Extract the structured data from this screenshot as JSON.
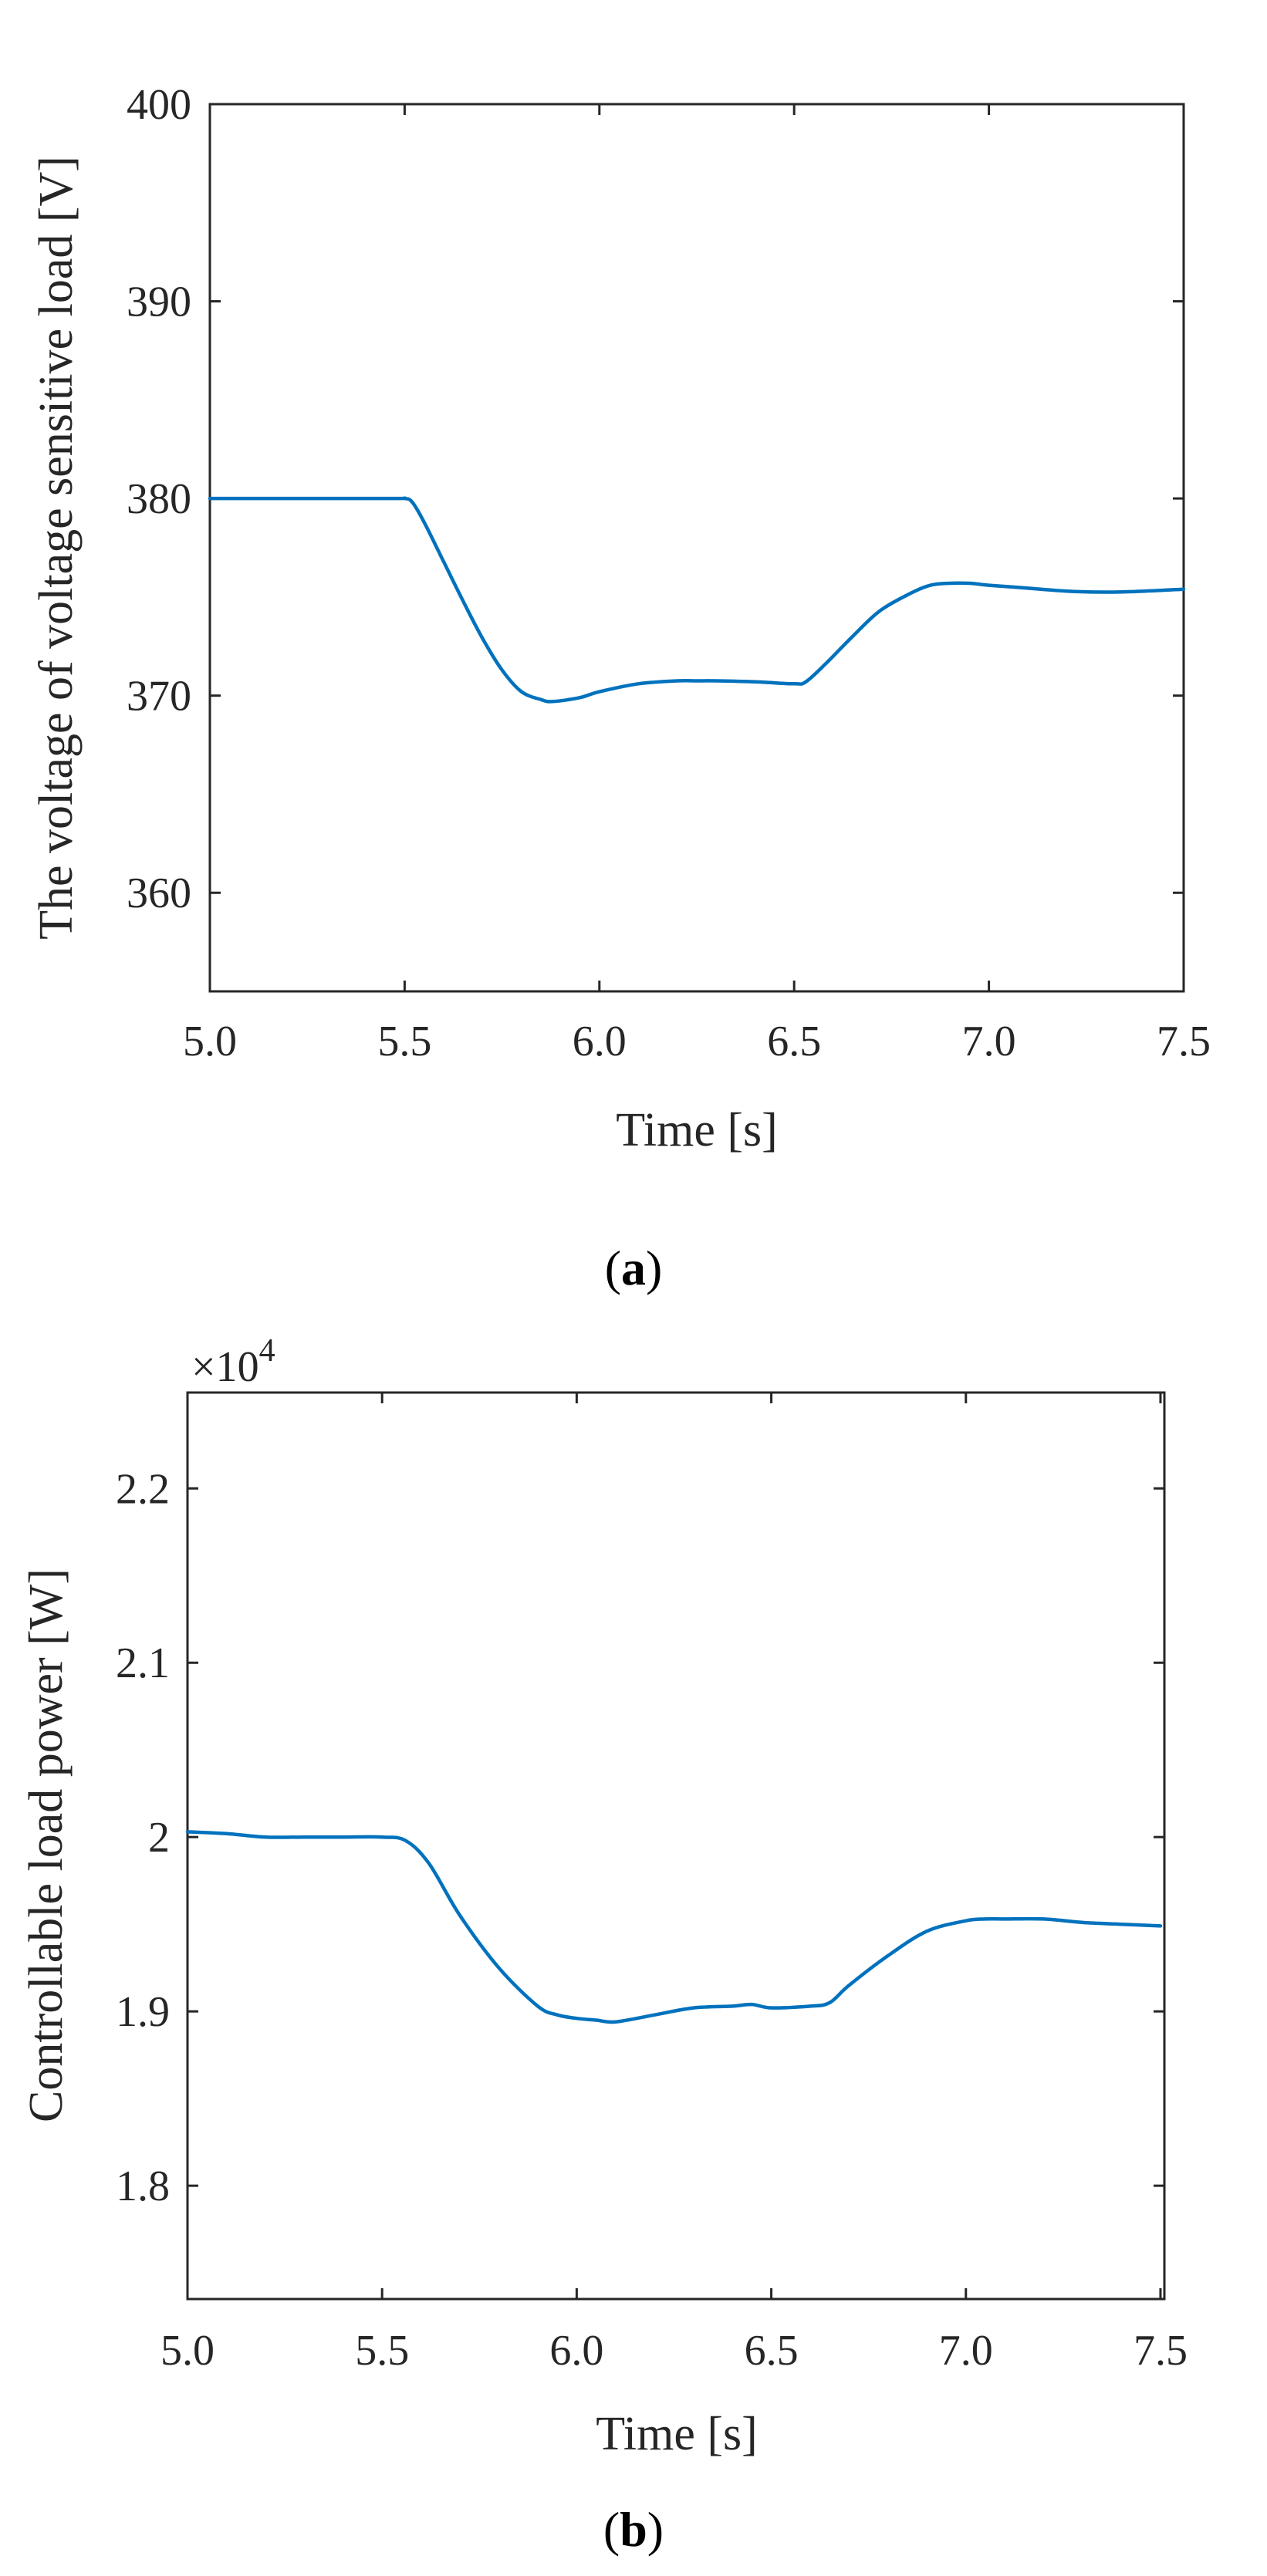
{
  "chart_data": [
    {
      "type": "line",
      "caption": "(a)",
      "caption_letter": "a",
      "xlabel": "Time [s]",
      "ylabel": "The voltage of voltage sensitive load [V]",
      "xlim": [
        5.0,
        7.5
      ],
      "ylim": [
        355,
        400
      ],
      "xticks": [
        5.0,
        5.5,
        6.0,
        6.5,
        7.0,
        7.5
      ],
      "xtick_labels": [
        "5.0",
        "5.5",
        "6.0",
        "6.5",
        "7.0",
        "7.5"
      ],
      "yticks": [
        360,
        370,
        380,
        390,
        400
      ],
      "ytick_labels": [
        "360",
        "370",
        "380",
        "390",
        "400"
      ],
      "grid": false,
      "line_color": "#0072BD",
      "series": [
        {
          "name": "voltage",
          "x": [
            5.0,
            5.45,
            5.5,
            5.52,
            5.55,
            5.6,
            5.65,
            5.7,
            5.75,
            5.8,
            5.85,
            5.88,
            5.95,
            6.0,
            6.1,
            6.2,
            6.25,
            6.3,
            6.4,
            6.5,
            6.53,
            6.58,
            6.65,
            6.72,
            6.8,
            6.85,
            6.9,
            6.95,
            7.0,
            7.1,
            7.2,
            7.3,
            7.4,
            7.5
          ],
          "values": [
            380.0,
            380.0,
            380.0,
            379.8,
            378.8,
            376.8,
            374.8,
            372.9,
            371.3,
            370.2,
            369.8,
            369.7,
            369.9,
            370.2,
            370.6,
            370.75,
            370.75,
            370.75,
            370.7,
            370.6,
            370.7,
            371.6,
            373.0,
            374.3,
            375.2,
            375.6,
            375.7,
            375.7,
            375.6,
            375.45,
            375.3,
            375.25,
            375.3,
            375.4
          ]
        }
      ]
    },
    {
      "type": "line",
      "caption": "(b)",
      "caption_letter": "b",
      "xlabel": "Time [s]",
      "ylabel": "Controllable load power [W]",
      "exponent_label": "×10",
      "exponent_power": "4",
      "xlim": [
        5.0,
        7.51
      ],
      "ylim": [
        1.735,
        2.255
      ],
      "xticks": [
        5.0,
        5.5,
        6.0,
        6.5,
        7.0,
        7.5
      ],
      "xtick_labels": [
        "5.0",
        "5.5",
        "6.0",
        "6.5",
        "7.0",
        "7.5"
      ],
      "yticks": [
        1.8,
        1.9,
        2.0,
        2.1,
        2.2
      ],
      "ytick_labels": [
        "1.8",
        "1.9",
        "2",
        "2.1",
        "2.2"
      ],
      "grid": false,
      "line_color": "#0072BD",
      "series": [
        {
          "name": "power",
          "x": [
            5.0,
            5.1,
            5.2,
            5.3,
            5.4,
            5.5,
            5.56,
            5.62,
            5.7,
            5.8,
            5.9,
            5.95,
            6.0,
            6.05,
            6.1,
            6.2,
            6.3,
            6.4,
            6.45,
            6.5,
            6.6,
            6.65,
            6.7,
            6.8,
            6.9,
            7.0,
            7.05,
            7.1,
            7.2,
            7.3,
            7.4,
            7.5
          ],
          "values": [
            2.003,
            2.002,
            2.0,
            2.0,
            2.0,
            2.0,
            1.998,
            1.985,
            1.955,
            1.925,
            1.903,
            1.898,
            1.896,
            1.895,
            1.894,
            1.898,
            1.902,
            1.903,
            1.904,
            1.902,
            1.903,
            1.905,
            1.915,
            1.932,
            1.946,
            1.952,
            1.953,
            1.953,
            1.953,
            1.951,
            1.95,
            1.949
          ]
        }
      ]
    }
  ]
}
